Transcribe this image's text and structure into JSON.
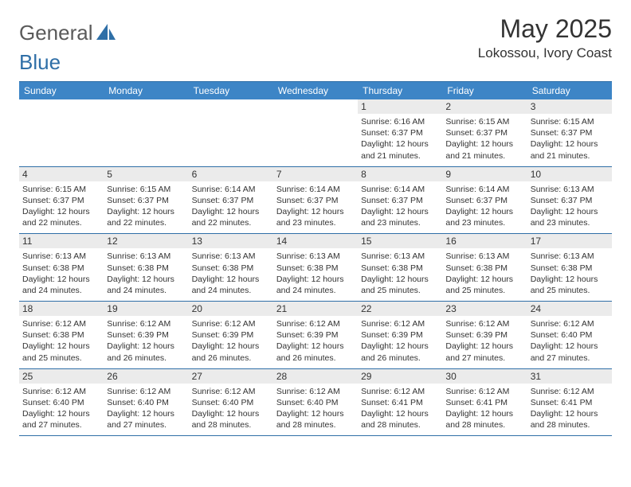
{
  "brand": {
    "name_part1": "General",
    "name_part2": "Blue"
  },
  "title": "May 2025",
  "location": "Lokossou, Ivory Coast",
  "colors": {
    "header_bg": "#3d85c6",
    "header_text": "#ffffff",
    "datebar_bg": "#ebebeb",
    "divider": "#2f6fa7",
    "body_text": "#333333",
    "logo_gray": "#5a5a5a",
    "logo_blue": "#2f6fa7"
  },
  "day_headers": [
    "Sunday",
    "Monday",
    "Tuesday",
    "Wednesday",
    "Thursday",
    "Friday",
    "Saturday"
  ],
  "weeks": [
    [
      {
        "blank": true
      },
      {
        "blank": true
      },
      {
        "blank": true
      },
      {
        "blank": true
      },
      {
        "date": "1",
        "sunrise": "Sunrise: 6:16 AM",
        "sunset": "Sunset: 6:37 PM",
        "daylight1": "Daylight: 12 hours",
        "daylight2": "and 21 minutes."
      },
      {
        "date": "2",
        "sunrise": "Sunrise: 6:15 AM",
        "sunset": "Sunset: 6:37 PM",
        "daylight1": "Daylight: 12 hours",
        "daylight2": "and 21 minutes."
      },
      {
        "date": "3",
        "sunrise": "Sunrise: 6:15 AM",
        "sunset": "Sunset: 6:37 PM",
        "daylight1": "Daylight: 12 hours",
        "daylight2": "and 21 minutes."
      }
    ],
    [
      {
        "date": "4",
        "sunrise": "Sunrise: 6:15 AM",
        "sunset": "Sunset: 6:37 PM",
        "daylight1": "Daylight: 12 hours",
        "daylight2": "and 22 minutes."
      },
      {
        "date": "5",
        "sunrise": "Sunrise: 6:15 AM",
        "sunset": "Sunset: 6:37 PM",
        "daylight1": "Daylight: 12 hours",
        "daylight2": "and 22 minutes."
      },
      {
        "date": "6",
        "sunrise": "Sunrise: 6:14 AM",
        "sunset": "Sunset: 6:37 PM",
        "daylight1": "Daylight: 12 hours",
        "daylight2": "and 22 minutes."
      },
      {
        "date": "7",
        "sunrise": "Sunrise: 6:14 AM",
        "sunset": "Sunset: 6:37 PM",
        "daylight1": "Daylight: 12 hours",
        "daylight2": "and 23 minutes."
      },
      {
        "date": "8",
        "sunrise": "Sunrise: 6:14 AM",
        "sunset": "Sunset: 6:37 PM",
        "daylight1": "Daylight: 12 hours",
        "daylight2": "and 23 minutes."
      },
      {
        "date": "9",
        "sunrise": "Sunrise: 6:14 AM",
        "sunset": "Sunset: 6:37 PM",
        "daylight1": "Daylight: 12 hours",
        "daylight2": "and 23 minutes."
      },
      {
        "date": "10",
        "sunrise": "Sunrise: 6:13 AM",
        "sunset": "Sunset: 6:37 PM",
        "daylight1": "Daylight: 12 hours",
        "daylight2": "and 23 minutes."
      }
    ],
    [
      {
        "date": "11",
        "sunrise": "Sunrise: 6:13 AM",
        "sunset": "Sunset: 6:38 PM",
        "daylight1": "Daylight: 12 hours",
        "daylight2": "and 24 minutes."
      },
      {
        "date": "12",
        "sunrise": "Sunrise: 6:13 AM",
        "sunset": "Sunset: 6:38 PM",
        "daylight1": "Daylight: 12 hours",
        "daylight2": "and 24 minutes."
      },
      {
        "date": "13",
        "sunrise": "Sunrise: 6:13 AM",
        "sunset": "Sunset: 6:38 PM",
        "daylight1": "Daylight: 12 hours",
        "daylight2": "and 24 minutes."
      },
      {
        "date": "14",
        "sunrise": "Sunrise: 6:13 AM",
        "sunset": "Sunset: 6:38 PM",
        "daylight1": "Daylight: 12 hours",
        "daylight2": "and 24 minutes."
      },
      {
        "date": "15",
        "sunrise": "Sunrise: 6:13 AM",
        "sunset": "Sunset: 6:38 PM",
        "daylight1": "Daylight: 12 hours",
        "daylight2": "and 25 minutes."
      },
      {
        "date": "16",
        "sunrise": "Sunrise: 6:13 AM",
        "sunset": "Sunset: 6:38 PM",
        "daylight1": "Daylight: 12 hours",
        "daylight2": "and 25 minutes."
      },
      {
        "date": "17",
        "sunrise": "Sunrise: 6:13 AM",
        "sunset": "Sunset: 6:38 PM",
        "daylight1": "Daylight: 12 hours",
        "daylight2": "and 25 minutes."
      }
    ],
    [
      {
        "date": "18",
        "sunrise": "Sunrise: 6:12 AM",
        "sunset": "Sunset: 6:38 PM",
        "daylight1": "Daylight: 12 hours",
        "daylight2": "and 25 minutes."
      },
      {
        "date": "19",
        "sunrise": "Sunrise: 6:12 AM",
        "sunset": "Sunset: 6:39 PM",
        "daylight1": "Daylight: 12 hours",
        "daylight2": "and 26 minutes."
      },
      {
        "date": "20",
        "sunrise": "Sunrise: 6:12 AM",
        "sunset": "Sunset: 6:39 PM",
        "daylight1": "Daylight: 12 hours",
        "daylight2": "and 26 minutes."
      },
      {
        "date": "21",
        "sunrise": "Sunrise: 6:12 AM",
        "sunset": "Sunset: 6:39 PM",
        "daylight1": "Daylight: 12 hours",
        "daylight2": "and 26 minutes."
      },
      {
        "date": "22",
        "sunrise": "Sunrise: 6:12 AM",
        "sunset": "Sunset: 6:39 PM",
        "daylight1": "Daylight: 12 hours",
        "daylight2": "and 26 minutes."
      },
      {
        "date": "23",
        "sunrise": "Sunrise: 6:12 AM",
        "sunset": "Sunset: 6:39 PM",
        "daylight1": "Daylight: 12 hours",
        "daylight2": "and 27 minutes."
      },
      {
        "date": "24",
        "sunrise": "Sunrise: 6:12 AM",
        "sunset": "Sunset: 6:40 PM",
        "daylight1": "Daylight: 12 hours",
        "daylight2": "and 27 minutes."
      }
    ],
    [
      {
        "date": "25",
        "sunrise": "Sunrise: 6:12 AM",
        "sunset": "Sunset: 6:40 PM",
        "daylight1": "Daylight: 12 hours",
        "daylight2": "and 27 minutes."
      },
      {
        "date": "26",
        "sunrise": "Sunrise: 6:12 AM",
        "sunset": "Sunset: 6:40 PM",
        "daylight1": "Daylight: 12 hours",
        "daylight2": "and 27 minutes."
      },
      {
        "date": "27",
        "sunrise": "Sunrise: 6:12 AM",
        "sunset": "Sunset: 6:40 PM",
        "daylight1": "Daylight: 12 hours",
        "daylight2": "and 28 minutes."
      },
      {
        "date": "28",
        "sunrise": "Sunrise: 6:12 AM",
        "sunset": "Sunset: 6:40 PM",
        "daylight1": "Daylight: 12 hours",
        "daylight2": "and 28 minutes."
      },
      {
        "date": "29",
        "sunrise": "Sunrise: 6:12 AM",
        "sunset": "Sunset: 6:41 PM",
        "daylight1": "Daylight: 12 hours",
        "daylight2": "and 28 minutes."
      },
      {
        "date": "30",
        "sunrise": "Sunrise: 6:12 AM",
        "sunset": "Sunset: 6:41 PM",
        "daylight1": "Daylight: 12 hours",
        "daylight2": "and 28 minutes."
      },
      {
        "date": "31",
        "sunrise": "Sunrise: 6:12 AM",
        "sunset": "Sunset: 6:41 PM",
        "daylight1": "Daylight: 12 hours",
        "daylight2": "and 28 minutes."
      }
    ]
  ]
}
